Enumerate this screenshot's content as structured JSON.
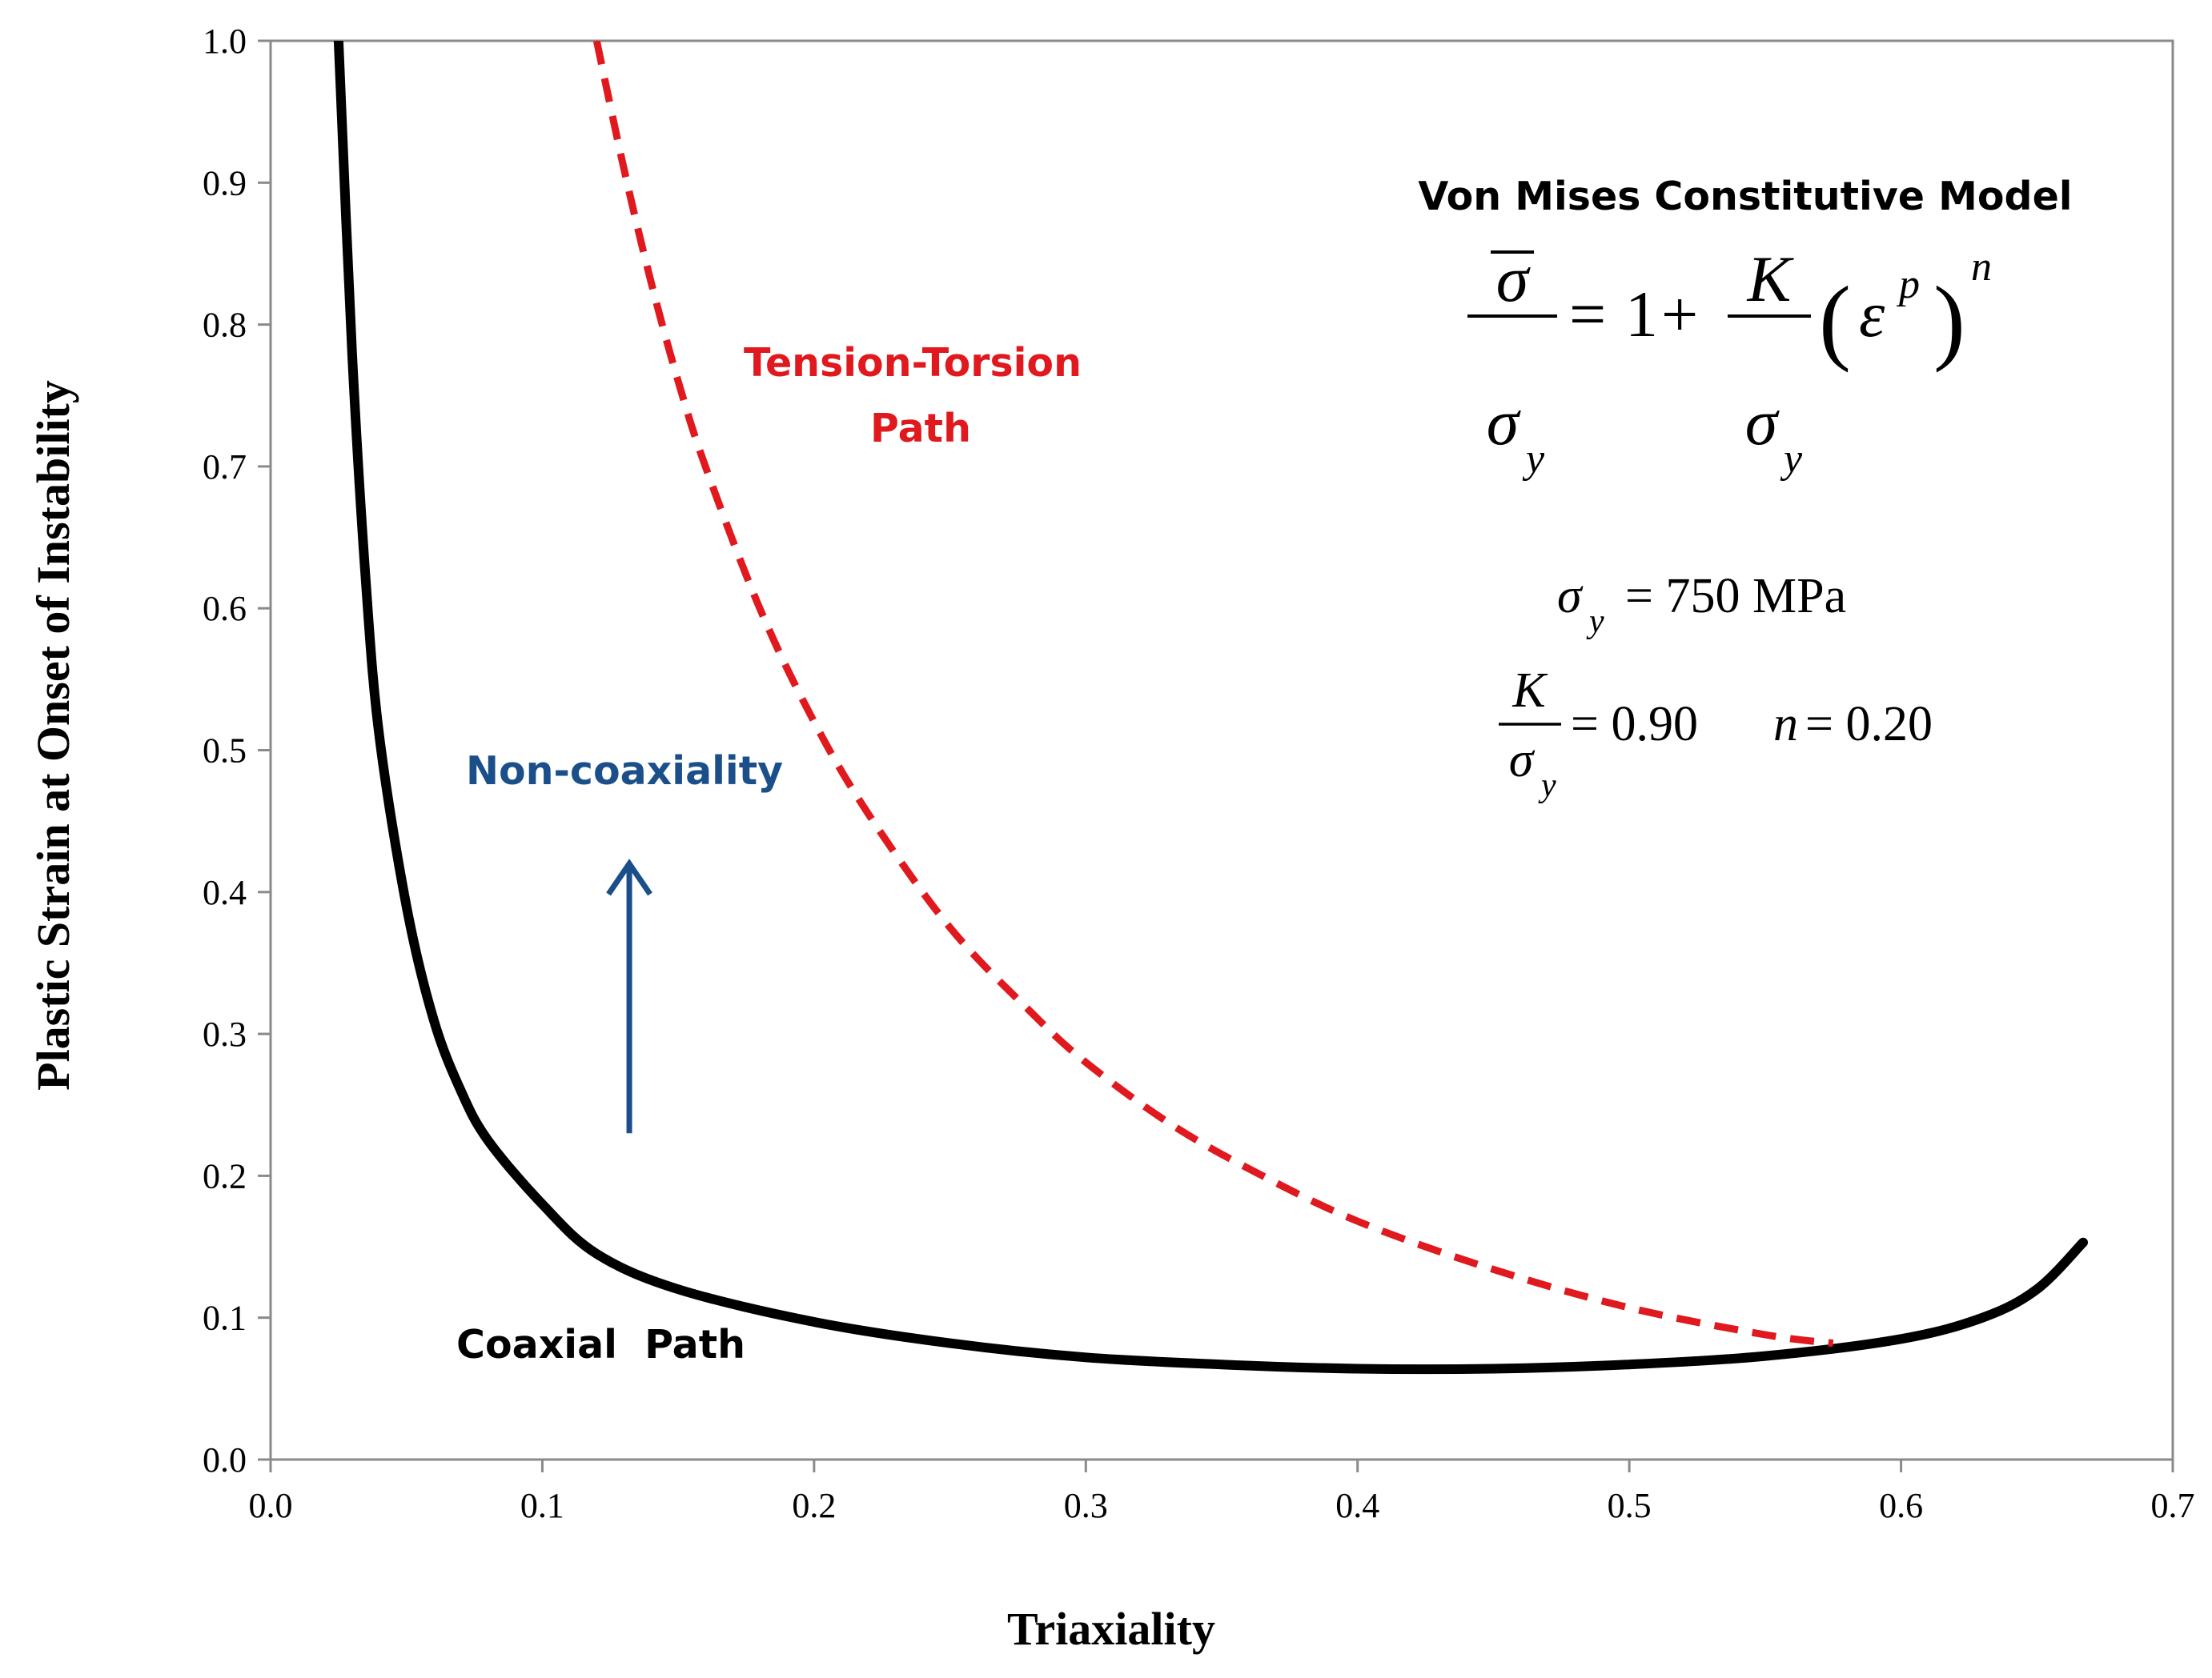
{
  "chart_data": {
    "type": "line",
    "title": "",
    "xlabel": "Triaxiality",
    "ylabel": "Plastic Strain at Onset of Instability",
    "xlim": [
      0.0,
      0.7
    ],
    "ylim": [
      0.0,
      1.0
    ],
    "x_ticks": [
      "0.0",
      "0.1",
      "0.2",
      "0.3",
      "0.4",
      "0.5",
      "0.6",
      "0.7"
    ],
    "y_ticks": [
      "0.0",
      "0.1",
      "0.2",
      "0.3",
      "0.4",
      "0.5",
      "0.6",
      "0.7",
      "0.8",
      "0.9",
      "1.0"
    ],
    "grid": false,
    "series": [
      {
        "name": "Coaxial Path",
        "color": "#000000",
        "style": "solid",
        "x": [
          0.025,
          0.03,
          0.035,
          0.04,
          0.05,
          0.06,
          0.07,
          0.08,
          0.1,
          0.12,
          0.15,
          0.2,
          0.25,
          0.3,
          0.35,
          0.4,
          0.45,
          0.5,
          0.55,
          0.6,
          0.63,
          0.65,
          0.667
        ],
        "y": [
          1.0,
          0.78,
          0.62,
          0.51,
          0.39,
          0.31,
          0.26,
          0.225,
          0.18,
          0.145,
          0.12,
          0.097,
          0.082,
          0.072,
          0.067,
          0.064,
          0.064,
          0.067,
          0.073,
          0.085,
          0.1,
          0.12,
          0.153
        ]
      },
      {
        "name": "Tension-Torsion Path",
        "color": "#e0191e",
        "style": "dashed",
        "x": [
          0.12,
          0.13,
          0.14,
          0.15,
          0.16,
          0.18,
          0.2,
          0.22,
          0.25,
          0.28,
          0.3,
          0.33,
          0.36,
          0.4,
          0.45,
          0.5,
          0.55,
          0.575
        ],
        "y": [
          1.0,
          0.91,
          0.83,
          0.76,
          0.7,
          0.6,
          0.52,
          0.455,
          0.375,
          0.315,
          0.28,
          0.238,
          0.205,
          0.168,
          0.134,
          0.107,
          0.088,
          0.082
        ]
      }
    ],
    "annotations": {
      "tension_torsion_line1": "Tension-Torsion",
      "tension_torsion_line2": "Path",
      "coaxial": "Coaxial  Path",
      "noncoaxiality": "Non-coaxiality",
      "model_title": "Von Mises Constitutive Model",
      "sigma_y_value": "= 750 MPa",
      "k_ratio_value": "= 0.90",
      "n_value": "= 0.20"
    },
    "arrow": {
      "from": [
        0.132,
        0.23
      ],
      "to": [
        0.132,
        0.42
      ],
      "color": "#1b4f8a"
    }
  }
}
